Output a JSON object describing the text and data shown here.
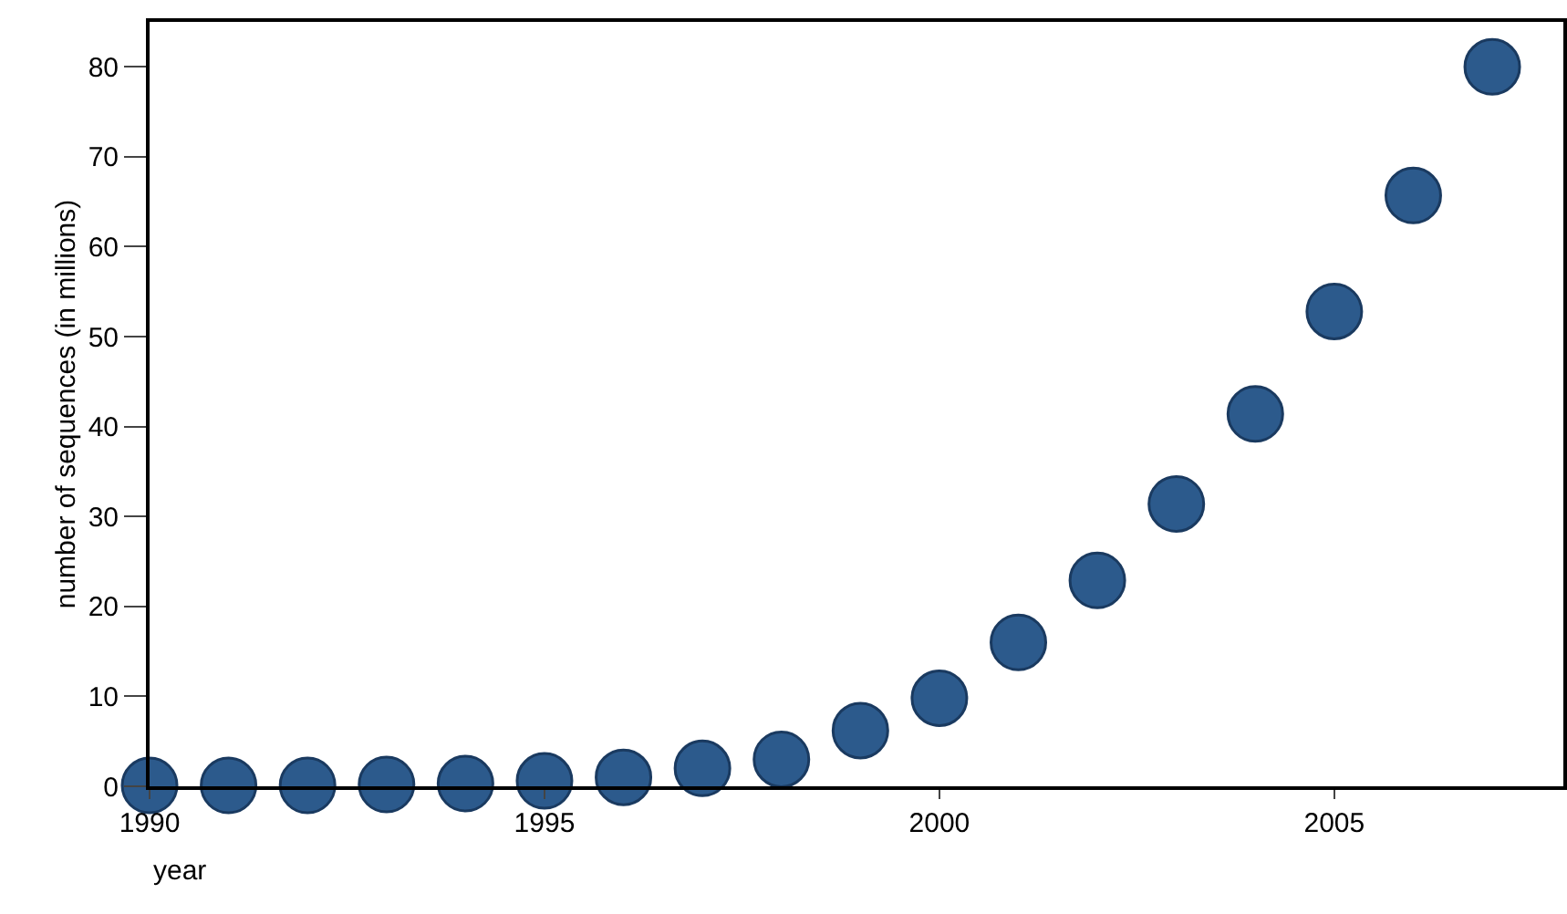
{
  "chart_data": {
    "type": "scatter",
    "xlabel": "year",
    "ylabel": "number of sequences (in millions)",
    "x": [
      1990,
      1991,
      1992,
      1993,
      1994,
      1995,
      1996,
      1997,
      1998,
      1999,
      2000,
      2001,
      2002,
      2003,
      2004,
      2005,
      2006,
      2007
    ],
    "values": [
      0.1,
      0.1,
      0.1,
      0.2,
      0.3,
      0.6,
      1,
      2,
      3,
      6.2,
      9.8,
      16,
      22.9,
      31.4,
      41.4,
      52.8,
      65.7,
      80
    ],
    "color": "#2c5a8c",
    "marker": "circle",
    "xlim": [
      1990,
      2007.9
    ],
    "ylim": [
      0,
      85
    ],
    "xticks": [
      1990,
      1995,
      2000,
      2005
    ],
    "yticks": [
      0,
      10,
      20,
      30,
      40,
      50,
      60,
      70,
      80
    ]
  }
}
